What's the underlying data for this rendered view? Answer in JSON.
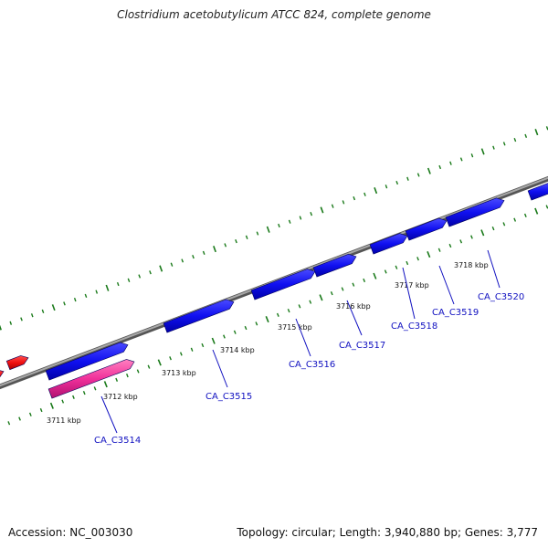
{
  "title": "Clostridium acetobutylicum ATCC 824, complete genome",
  "footer": {
    "accession": "Accession: NC_003030",
    "summary": "Topology: circular; Length: 3,940,880 bp; Genes: 3,777"
  },
  "colors": {
    "background": "#ffffff",
    "backbone": "#808080",
    "gene_forward": "#1a1aee",
    "gene_other": "#ee1a1a",
    "gene_highlight": "#ee3399",
    "tick": "#1a7a1a",
    "label_line": "#1010c0",
    "label_text": "#1010c0"
  },
  "ticks": [
    {
      "label": "3711 kbp"
    },
    {
      "label": "3712 kbp"
    },
    {
      "label": "3713 kbp"
    },
    {
      "label": "3714 kbp"
    },
    {
      "label": "3715 kbp"
    },
    {
      "label": "3716 kbp"
    },
    {
      "label": "3717 kbp"
    },
    {
      "label": "3718 kbp"
    }
  ],
  "genes": [
    {
      "name": "CA_C3514"
    },
    {
      "name": "CA_C3515"
    },
    {
      "name": "CA_C3516"
    },
    {
      "name": "CA_C3517"
    },
    {
      "name": "CA_C3518"
    },
    {
      "name": "CA_C3519"
    },
    {
      "name": "CA_C3520"
    }
  ]
}
